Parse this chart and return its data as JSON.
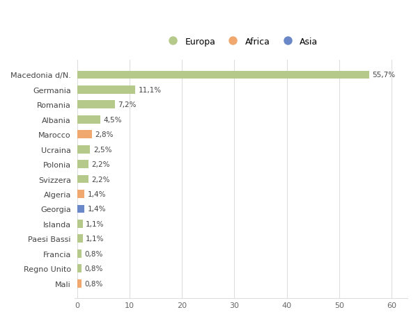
{
  "countries": [
    "Macedonia d/N.",
    "Germania",
    "Romania",
    "Albania",
    "Marocco",
    "Ucraina",
    "Polonia",
    "Svizzera",
    "Algeria",
    "Georgia",
    "Islanda",
    "Paesi Bassi",
    "Francia",
    "Regno Unito",
    "Mali"
  ],
  "values": [
    55.7,
    11.1,
    7.2,
    4.5,
    2.8,
    2.5,
    2.2,
    2.2,
    1.4,
    1.4,
    1.1,
    1.1,
    0.8,
    0.8,
    0.8
  ],
  "labels": [
    "55,7%",
    "11,1%",
    "7,2%",
    "4,5%",
    "2,8%",
    "2,5%",
    "2,2%",
    "2,2%",
    "1,4%",
    "1,4%",
    "1,1%",
    "1,1%",
    "0,8%",
    "0,8%",
    "0,8%"
  ],
  "colors": [
    "#b5c98a",
    "#b5c98a",
    "#b5c98a",
    "#b5c98a",
    "#f0a86e",
    "#b5c98a",
    "#b5c98a",
    "#b5c98a",
    "#f0a86e",
    "#6a87c8",
    "#b5c98a",
    "#b5c98a",
    "#b5c98a",
    "#b5c98a",
    "#f0a86e"
  ],
  "legend_labels": [
    "Europa",
    "Africa",
    "Asia"
  ],
  "legend_colors": [
    "#b5c98a",
    "#f0a86e",
    "#6a87c8"
  ],
  "xlabel_ticks": [
    0,
    10,
    20,
    30,
    40,
    50,
    60
  ],
  "xlim": [
    -0.5,
    63
  ],
  "background_color": "#ffffff",
  "grid_color": "#dddddd"
}
